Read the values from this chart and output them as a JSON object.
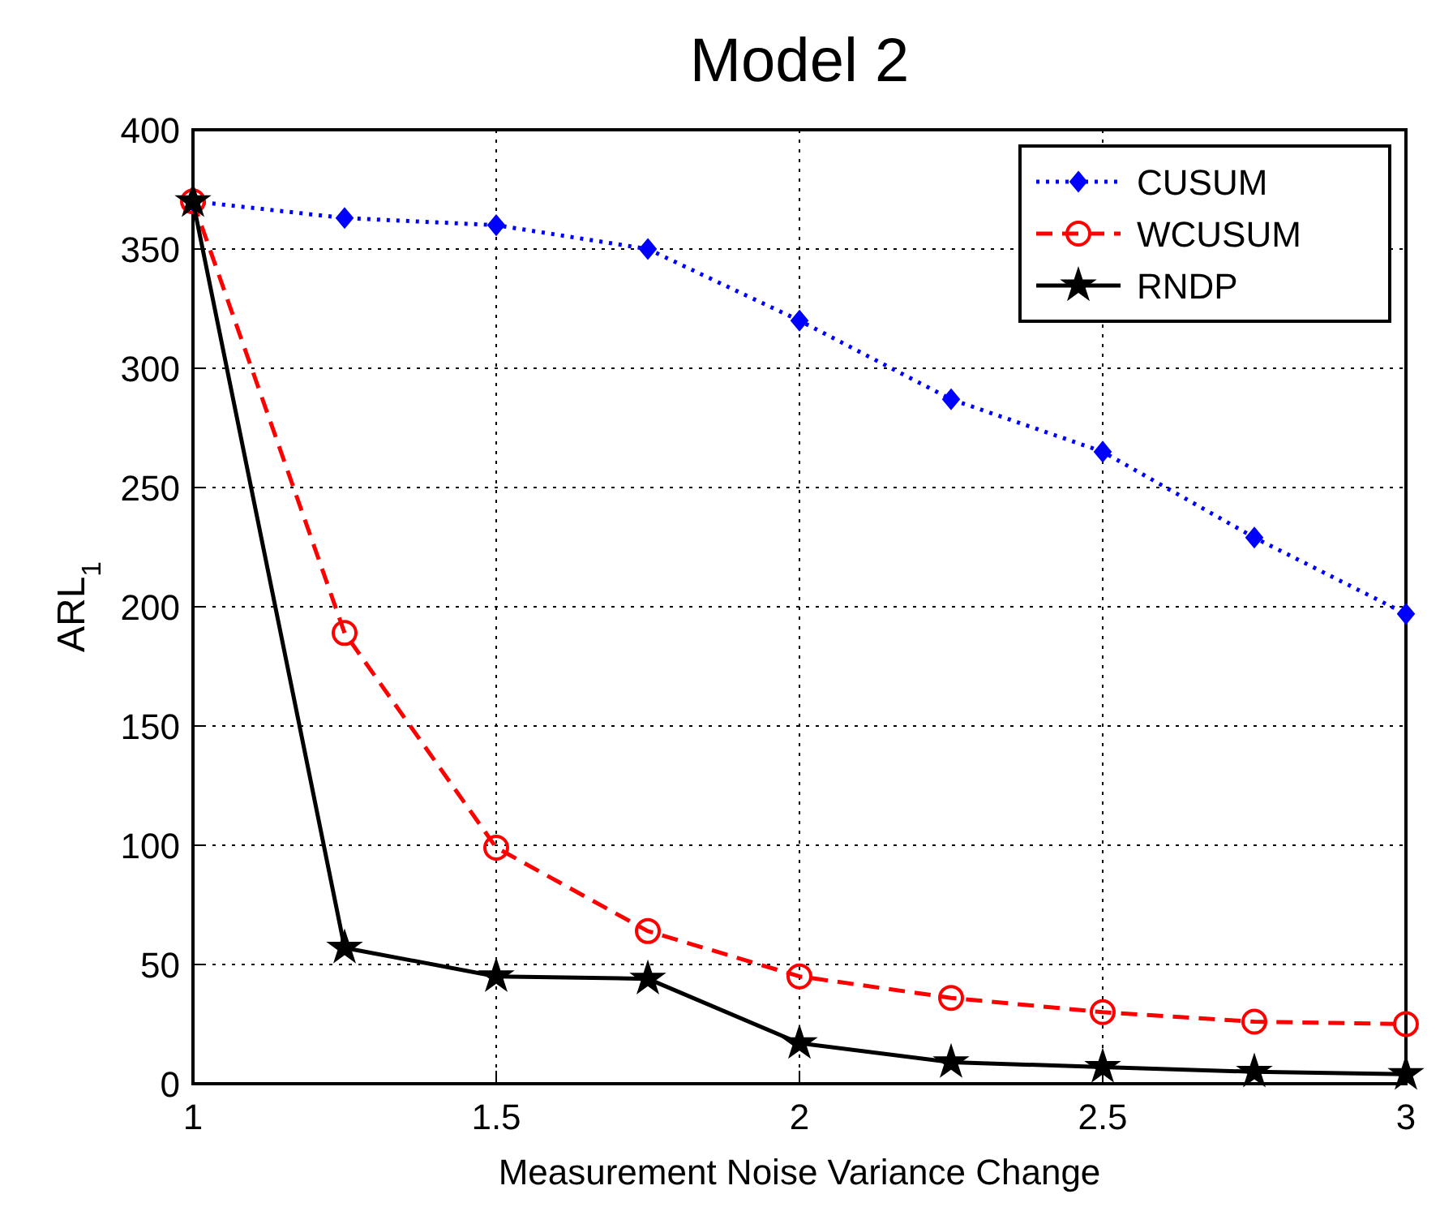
{
  "chart_data": {
    "type": "line",
    "title": "Model 2",
    "xlabel": "Measurement Noise Variance Change",
    "ylabel": "ARL$_{1}$",
    "x": [
      1,
      1.25,
      1.5,
      1.75,
      2,
      2.25,
      2.5,
      2.75,
      3
    ],
    "series": [
      {
        "name": "CUSUM",
        "color": "#0000ff",
        "marker": "diamond",
        "line_style": "dotted",
        "values": [
          370,
          363,
          360,
          350,
          320,
          287,
          265,
          229,
          197
        ]
      },
      {
        "name": "WCUSUM",
        "color": "#ff0000",
        "marker": "circle",
        "line_style": "dashed",
        "values": [
          370,
          189,
          99,
          64,
          45,
          36,
          30,
          26,
          25
        ]
      },
      {
        "name": "RNDP",
        "color": "#000000",
        "marker": "star",
        "line_style": "solid",
        "values": [
          370,
          57,
          45,
          44,
          17,
          9,
          7,
          5,
          4
        ]
      }
    ],
    "xlim": [
      1,
      3
    ],
    "xticks": [
      1,
      1.5,
      2,
      2.5,
      3
    ],
    "ylim": [
      0,
      400
    ],
    "yticks": [
      0,
      50,
      100,
      150,
      200,
      250,
      300,
      350,
      400
    ],
    "grid": true,
    "legend": "top right"
  }
}
